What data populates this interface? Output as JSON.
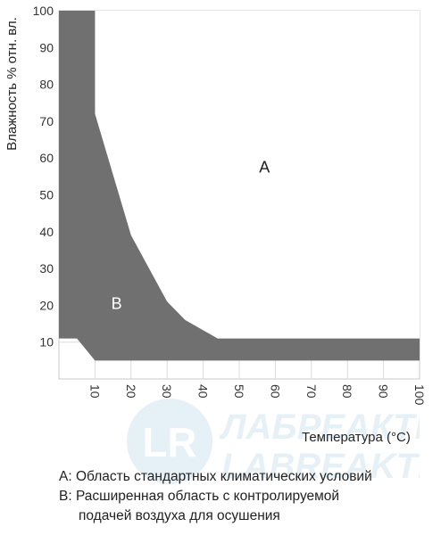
{
  "chart_data": {
    "type": "area",
    "xlabel": "Температура (°C)",
    "ylabel": "Влажность % отн. вл.",
    "xlim": [
      0,
      100
    ],
    "ylim": [
      0,
      100
    ],
    "x_ticks": [
      "10",
      "20",
      "30",
      "40",
      "50",
      "60",
      "70",
      "80",
      "90",
      "100"
    ],
    "y_ticks": [
      "10",
      "20",
      "30",
      "40",
      "50",
      "60",
      "70",
      "80",
      "90",
      "100"
    ],
    "grid": true,
    "regions": [
      {
        "name": "A",
        "color": "#ffffff",
        "boundary": [
          [
            10,
            100
          ],
          [
            100,
            100
          ],
          [
            100,
            11
          ],
          [
            44,
            11
          ],
          [
            35,
            16
          ],
          [
            30,
            21
          ],
          [
            20,
            39
          ],
          [
            10,
            72
          ]
        ]
      },
      {
        "name": "B",
        "color": "#707070",
        "boundary": [
          [
            0,
            100
          ],
          [
            10,
            100
          ],
          [
            10,
            72
          ],
          [
            20,
            39
          ],
          [
            30,
            21
          ],
          [
            35,
            16
          ],
          [
            44,
            11
          ],
          [
            100,
            11
          ],
          [
            100,
            5
          ],
          [
            10,
            5
          ],
          [
            5,
            11
          ],
          [
            0,
            11
          ]
        ]
      }
    ]
  },
  "legend": {
    "a_key": "A: ",
    "a_text": "Область стандартных климатических условий",
    "b_key": "B: ",
    "b_text": "Расширенная область с контролируемой",
    "b_text_cont": "подачей воздуха для осушения"
  },
  "watermark": {
    "logo_text": "LR",
    "brand_ru": "ЛАБРЕАКТИВ",
    "brand_en": "LABREAKTIV"
  }
}
